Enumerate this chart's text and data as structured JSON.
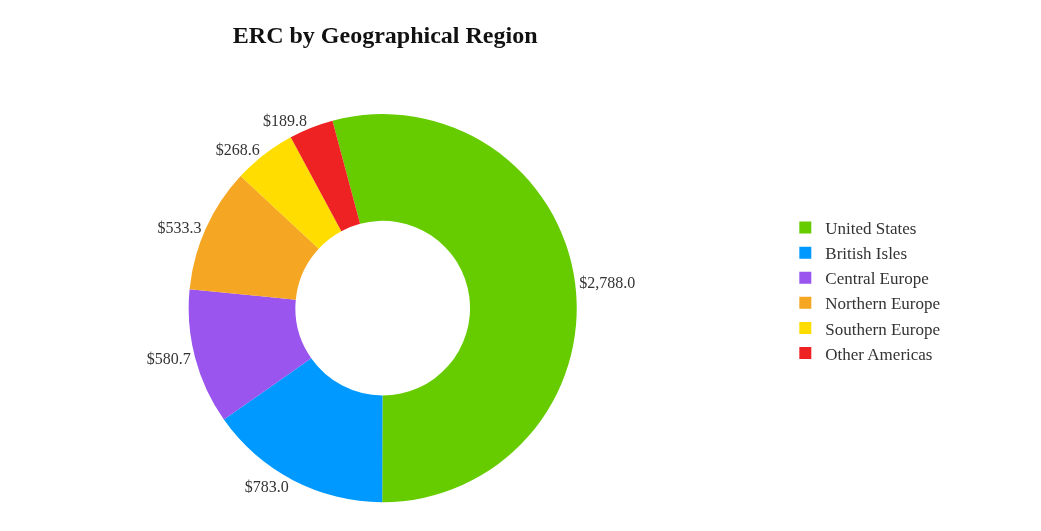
{
  "chart_data": {
    "type": "donut",
    "title": "ERC by Geographical Region",
    "categories": [
      "United States",
      "British Isles",
      "Central Europe",
      "Northern Europe",
      "Southern Europe",
      "Other Americas"
    ],
    "values": [
      2788.0,
      783.0,
      580.7,
      533.3,
      268.6,
      189.8
    ],
    "value_labels": [
      "$2,788.0",
      "$783.0",
      "$580.7",
      "$533.3",
      "$268.6",
      "$189.8"
    ],
    "colors": [
      "#66cc00",
      "#0099ff",
      "#9955ee",
      "#f5a623",
      "#ffdd00",
      "#ee2222"
    ],
    "legend": "right"
  }
}
